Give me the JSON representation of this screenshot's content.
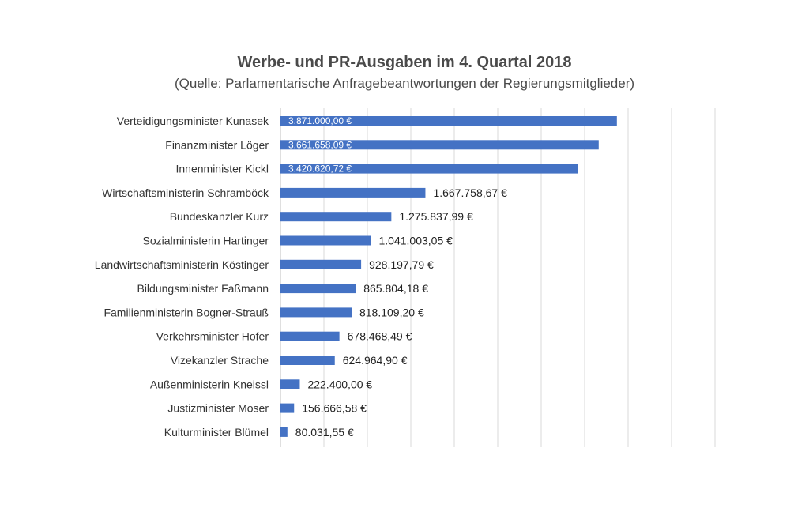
{
  "chart_data": {
    "type": "bar",
    "orientation": "horizontal",
    "title": "Werbe- und PR-Ausgaben im 4. Quartal 2018",
    "subtitle": "(Quelle: Parlamentarische Anfragebeantwortungen der Regierungsmitglieder)",
    "categories": [
      "Verteidigungsminister Kunasek",
      "Finanzminister Löger",
      "Innenminister Kickl",
      "Wirtschaftsministerin Schramböck",
      "Bundeskanzler Kurz",
      "Sozialministerin Hartinger",
      "Landwirtschaftsministerin Köstinger",
      "Bildungsminister Faßmann",
      "Familienministerin Bogner-Strauß",
      "Verkehrsminister Hofer",
      "Vizekanzler Strache",
      "Außenministerin Kneissl",
      "Justizminister Moser",
      "Kulturminister Blümel"
    ],
    "values": [
      3871000.0,
      3661658.09,
      3420620.72,
      1667758.67,
      1275837.99,
      1041003.05,
      928197.79,
      865804.18,
      818109.2,
      678468.49,
      624964.9,
      222400.0,
      156666.58,
      80031.55
    ],
    "data_labels": [
      "3.871.000,00 €",
      "3.661.658,09 €",
      "3.420.620,72 €",
      "1.667.758,67 €",
      "1.275.837,99 €",
      "1.041.003,05 €",
      "928.197,79 €",
      "865.804,18 €",
      "818.109,20 €",
      "678.468,49 €",
      "624.964,90 €",
      "222.400,00 €",
      "156.666,58 €",
      "80.031,55 €"
    ],
    "xlim": [
      0,
      5000000
    ],
    "grid": true,
    "legend": "none",
    "bar_color": "#4472c4"
  }
}
